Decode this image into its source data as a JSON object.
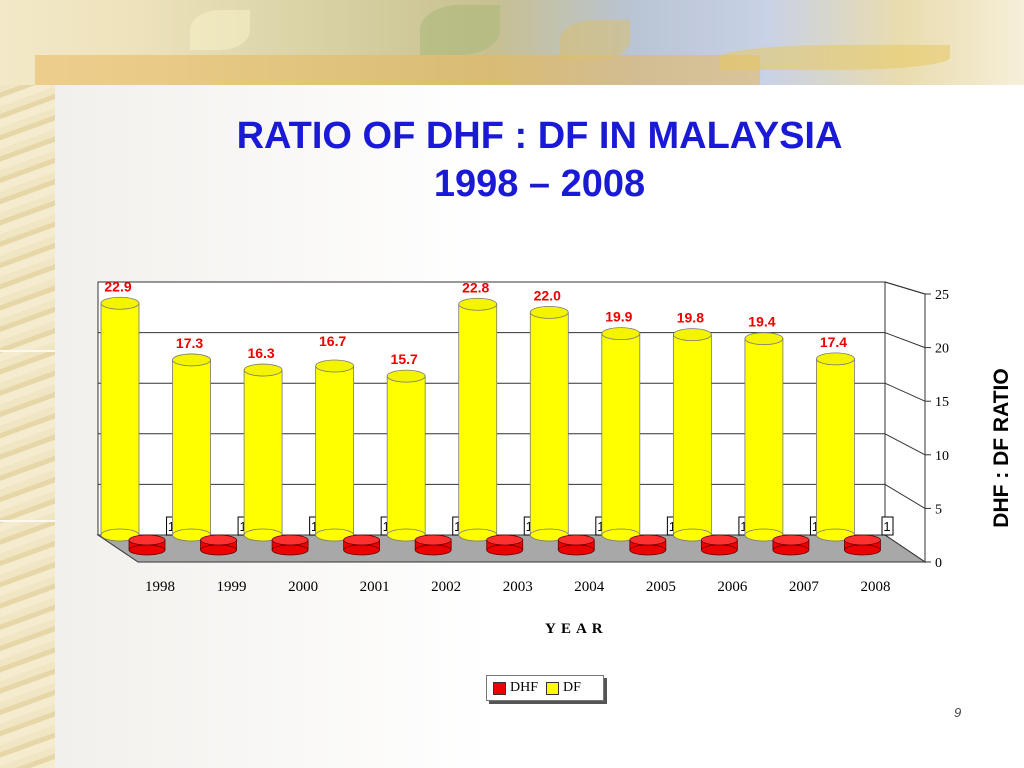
{
  "slide": {
    "title_line1": "RATIO OF DHF : DF IN MALAYSIA",
    "title_line2": "1998 – 2008",
    "page_number": "9"
  },
  "colors": {
    "title": "#1a1ad6",
    "df": "#ffff00",
    "dhf": "#ee0000",
    "value_label": "#ee0000"
  },
  "chart_data": {
    "type": "bar",
    "title": "RATIO OF DHF : DF IN MALAYSIA 1998 – 2008",
    "xlabel": "Y E A R",
    "ylabel": "DHF : DF RATIO",
    "categories": [
      "1998",
      "1999",
      "2000",
      "2001",
      "2002",
      "2003",
      "2004",
      "2005",
      "2006",
      "2007",
      "2008"
    ],
    "series": [
      {
        "name": "DHF",
        "values": [
          1,
          1,
          1,
          1,
          1,
          1,
          1,
          1,
          1,
          1,
          1
        ],
        "labels": [
          "1",
          "1",
          "1",
          "1",
          "1",
          "1",
          "1",
          "1",
          "1",
          "1",
          "1"
        ]
      },
      {
        "name": "DF",
        "values": [
          22.9,
          17.3,
          16.3,
          16.7,
          15.7,
          22.8,
          22.0,
          19.9,
          19.8,
          19.4,
          17.4
        ],
        "labels": [
          "22.9",
          "17.3",
          "16.3",
          "16.7",
          "15.7",
          "22.8",
          "22.0",
          "19.9",
          "19.8",
          "19.4",
          "17.4"
        ]
      }
    ],
    "ylim": [
      0,
      25
    ],
    "yticks": [
      "0",
      "5",
      "10",
      "15",
      "20",
      "25"
    ],
    "grid": true,
    "legend_position": "bottom-center",
    "style": "3d-cylinder"
  }
}
